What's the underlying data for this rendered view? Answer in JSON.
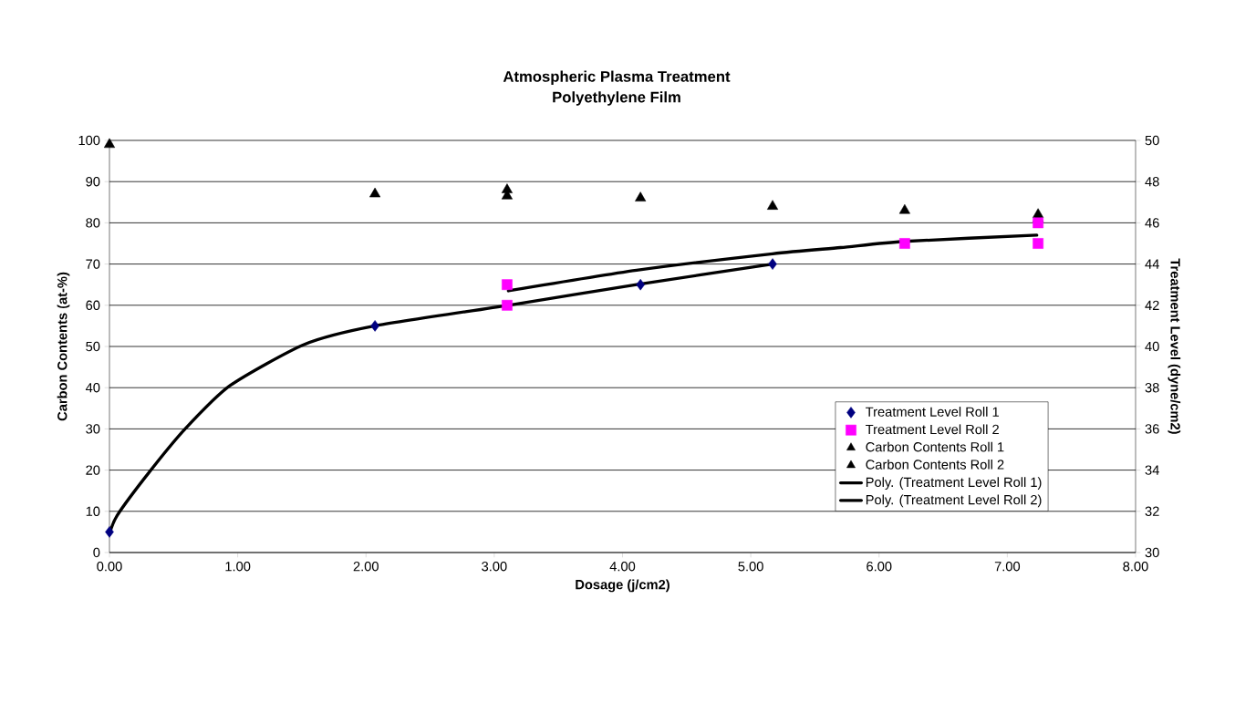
{
  "chart_data": {
    "type": "scatter",
    "title": "Atmospheric Plasma Treatment\nPolyethylene Film",
    "xlabel": "Dosage (j/cm2)",
    "ylabel": "Carbon Contents (at-%)",
    "y2label": "Treatment Level (dyne/cm2)",
    "xlim": [
      0,
      8
    ],
    "xticks": [
      {
        "value": 0,
        "label": "0.00"
      },
      {
        "value": 1,
        "label": "1.00"
      },
      {
        "value": 2,
        "label": "2.00"
      },
      {
        "value": 3,
        "label": "3.00"
      },
      {
        "value": 4,
        "label": "4.00"
      },
      {
        "value": 5,
        "label": "5.00"
      },
      {
        "value": 6,
        "label": "6.00"
      },
      {
        "value": 7,
        "label": "7.00"
      },
      {
        "value": 8,
        "label": "8.00"
      }
    ],
    "ylim": [
      0,
      100
    ],
    "yticks": [
      0,
      10,
      20,
      30,
      40,
      50,
      60,
      70,
      80,
      90,
      100
    ],
    "y2lim": [
      30,
      50
    ],
    "y2ticks": [
      30,
      32,
      34,
      36,
      38,
      40,
      42,
      44,
      46,
      48,
      50
    ],
    "grid": "y",
    "legend": "bottom right",
    "series": [
      {
        "name": "Treatment Level Roll 1",
        "type": "scatter",
        "axis": "y2",
        "marker": "diamond",
        "color": "#000080",
        "x": [
          0,
          2.07,
          4.14,
          5.17
        ],
        "values": [
          31,
          41,
          43,
          44
        ]
      },
      {
        "name": "Treatment Level Roll 2",
        "type": "scatter",
        "axis": "y2",
        "marker": "square",
        "color": "#ff00ff",
        "x": [
          3.1,
          3.1,
          6.2,
          7.24,
          7.24
        ],
        "values": [
          43,
          42,
          45,
          46,
          45
        ]
      },
      {
        "name": "Carbon Contents Roll 1",
        "type": "scatter",
        "marker": "triangle",
        "color": "#000000",
        "x": [
          0,
          2.07,
          3.1,
          4.14,
          5.17,
          6.2,
          7.24
        ],
        "values": [
          99,
          87,
          88,
          86,
          84,
          83,
          82
        ]
      },
      {
        "name": "Carbon Contents Roll 2",
        "type": "scatter",
        "marker": "triangle",
        "color": "#000000",
        "x": [
          3.1,
          7.24
        ],
        "values": [
          86.5,
          81
        ]
      },
      {
        "name": "Poly. (Treatment Level Roll 1)",
        "type": "line",
        "axis": "y2",
        "marker": "none",
        "color": "#000000",
        "x": [
          0,
          0.06,
          0.31,
          0.59,
          0.94,
          1.52,
          2.07,
          3.11,
          4.11,
          5.17
        ],
        "values": [
          30.9,
          31.8,
          33.9,
          36,
          38.1,
          40.1,
          41,
          42,
          43,
          44
        ]
      },
      {
        "name": "Poly. (Treatment Level Roll 2)",
        "type": "line",
        "axis": "y2",
        "marker": "none",
        "color": "#000000",
        "x": [
          3.11,
          4.11,
          5.17,
          5.7,
          6.2,
          7.23
        ],
        "values": [
          42.7,
          43.7,
          44.5,
          44.8,
          45.1,
          45.4
        ]
      }
    ]
  }
}
